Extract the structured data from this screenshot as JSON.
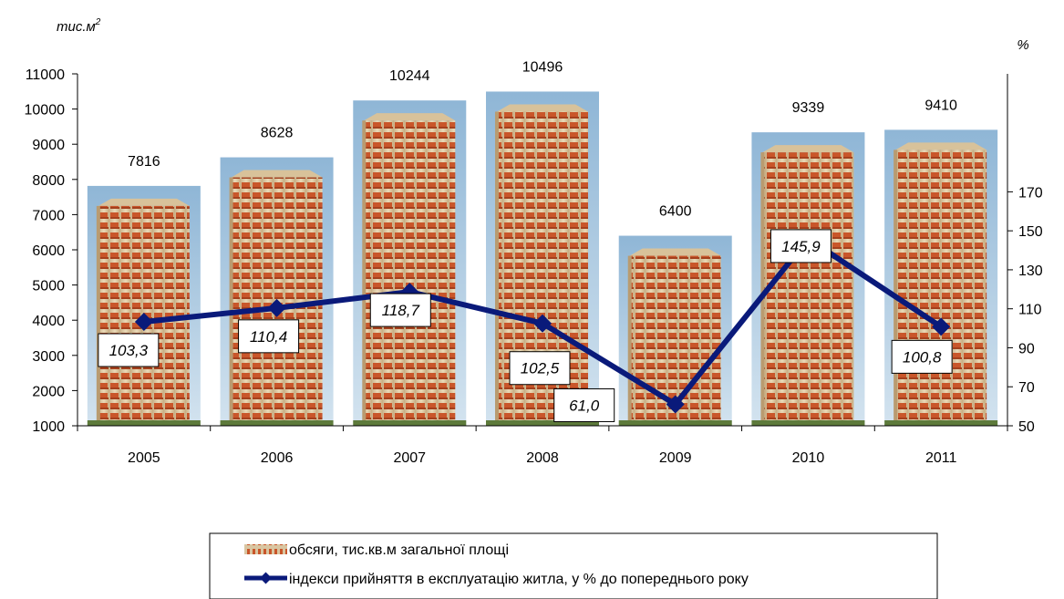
{
  "chart_data": {
    "type": "bar+line",
    "categories": [
      "2005",
      "2006",
      "2007",
      "2008",
      "2009",
      "2010",
      "2011"
    ],
    "series": [
      {
        "name": "обсяги, тис.кв.м загальної площі",
        "type": "bar",
        "axis": "left",
        "values": [
          7816,
          8628,
          10244,
          10496,
          6400,
          9339,
          9410
        ],
        "labels": [
          "7816",
          "8628",
          "10244",
          "10496",
          "6400",
          "9339",
          "9410"
        ]
      },
      {
        "name": "індекси прийняття в експлуатацію житла, у % до попереднього року",
        "type": "line",
        "axis": "right",
        "values": [
          103.3,
          110.4,
          118.7,
          102.5,
          61.0,
          145.9,
          100.8
        ],
        "labels": [
          "103,3",
          "110,4",
          "118,7",
          "102,5",
          "61,0",
          "145,9",
          "100,8"
        ],
        "color": "#0a1a7a"
      }
    ],
    "left_axis": {
      "label": "тис.м",
      "label_superscript": "2",
      "ylim": [
        1000,
        11000
      ],
      "ticks": [
        "1000",
        "2000",
        "3000",
        "4000",
        "5000",
        "6000",
        "7000",
        "8000",
        "9000",
        "10000",
        "11000"
      ]
    },
    "right_axis": {
      "label": "%",
      "ylim": [
        50,
        180
      ],
      "ticks": [
        "50",
        "70",
        "90",
        "110",
        "130",
        "150",
        "170"
      ]
    },
    "grid": false,
    "legend_position": "bottom"
  }
}
